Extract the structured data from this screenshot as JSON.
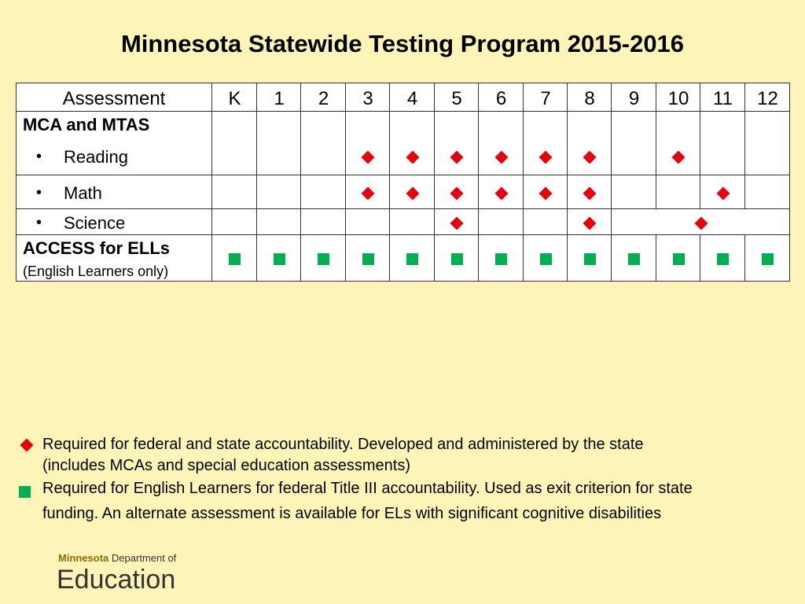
{
  "title": "Minnesota Statewide Testing Program 2015-2016",
  "table": {
    "header_label": "Assessment",
    "grades": [
      "K",
      "1",
      "2",
      "3",
      "4",
      "5",
      "6",
      "7",
      "8",
      "9",
      "10",
      "11",
      "12"
    ],
    "rows": {
      "mca_group": "MCA and MTAS",
      "reading": "Reading",
      "math": "Math",
      "science": "Science",
      "access_title": "ACCESS for ELLs",
      "access_sub": "(English Learners only)"
    },
    "marks": {
      "reading": [
        "3",
        "4",
        "5",
        "6",
        "7",
        "8",
        "10"
      ],
      "math": [
        "3",
        "4",
        "5",
        "6",
        "7",
        "8",
        "11"
      ],
      "science": [
        "5",
        "8",
        "high school"
      ],
      "access": [
        "K",
        "1",
        "2",
        "3",
        "4",
        "5",
        "6",
        "7",
        "8",
        "9",
        "10",
        "11",
        "12"
      ]
    }
  },
  "legend": {
    "diamond_line1": "Required for federal and state accountability. Developed and administered by the state",
    "diamond_line2": "(includes MCAs and special education assessments)",
    "square_line1": "Required for English Learners for federal Title III accountability. Used as exit criterion for state",
    "square_line2": "funding. An alternate assessment is available for ELs with significant cognitive disabilities"
  },
  "logo": {
    "state": "Minnesota",
    "dept": "Department of",
    "name": "Education"
  },
  "colors": {
    "background": "#fdf5b8",
    "diamond": "#e8000f",
    "square": "#00b050"
  }
}
